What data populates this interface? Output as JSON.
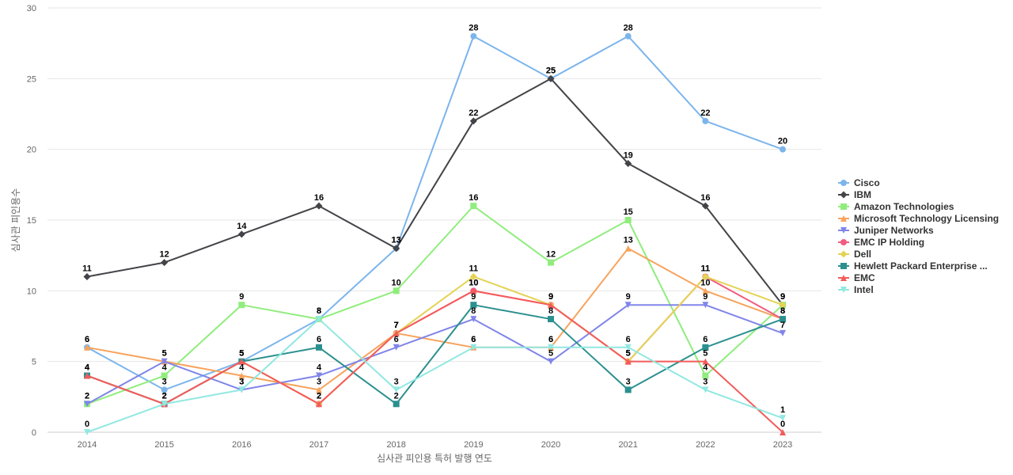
{
  "chart_data": {
    "type": "line",
    "xlabel": "심사관 피인용 특허 발행 연도",
    "ylabel": "심사관 피인용수",
    "ylim": [
      0,
      30
    ],
    "yticks": [
      0,
      5,
      10,
      15,
      20,
      25,
      30
    ],
    "categories": [
      "2014",
      "2015",
      "2016",
      "2017",
      "2018",
      "2019",
      "2020",
      "2021",
      "2022",
      "2023"
    ],
    "grid": "horizontal",
    "legend_position": "right",
    "series": [
      {
        "name": "Cisco",
        "color": "#7cb5ec",
        "marker": "circle",
        "values": [
          6,
          3,
          5,
          8,
          13,
          28,
          25,
          28,
          22,
          20
        ]
      },
      {
        "name": "IBM",
        "color": "#434348",
        "marker": "diamond",
        "values": [
          11,
          12,
          14,
          16,
          13,
          22,
          25,
          19,
          16,
          9
        ]
      },
      {
        "name": "Amazon Technologies",
        "color": "#90ed7d",
        "marker": "square",
        "values": [
          2,
          4,
          9,
          8,
          10,
          16,
          12,
          15,
          4,
          9
        ]
      },
      {
        "name": "Microsoft Technology Licensing",
        "color": "#f7a35c",
        "marker": "triangle",
        "values": [
          6,
          5,
          4,
          3,
          7,
          6,
          6,
          13,
          10,
          8
        ]
      },
      {
        "name": "Juniper Networks",
        "color": "#8085e9",
        "marker": "triangle-down",
        "values": [
          2,
          5,
          3,
          4,
          6,
          8,
          5,
          9,
          9,
          7
        ]
      },
      {
        "name": "EMC IP Holding",
        "color": "#f15c80",
        "marker": "circle",
        "values": [
          4,
          2,
          5,
          2,
          7,
          10,
          9,
          5,
          11,
          8
        ]
      },
      {
        "name": "Dell",
        "color": "#e4d354",
        "marker": "diamond",
        "values": [
          4,
          2,
          5,
          2,
          7,
          11,
          9,
          5,
          11,
          9
        ]
      },
      {
        "name": "Hewlett Packard Enterprise ...",
        "color": "#2b908f",
        "marker": "square",
        "values": [
          4,
          2,
          5,
          6,
          2,
          9,
          8,
          3,
          6,
          8
        ]
      },
      {
        "name": "EMC",
        "color": "#f45b5b",
        "marker": "triangle",
        "values": [
          4,
          2,
          5,
          2,
          7,
          10,
          9,
          5,
          5,
          0
        ]
      },
      {
        "name": "Intel",
        "color": "#91e8e1",
        "marker": "triangle-down",
        "values": [
          0,
          2,
          3,
          8,
          3,
          6,
          6,
          6,
          3,
          1
        ]
      }
    ]
  }
}
